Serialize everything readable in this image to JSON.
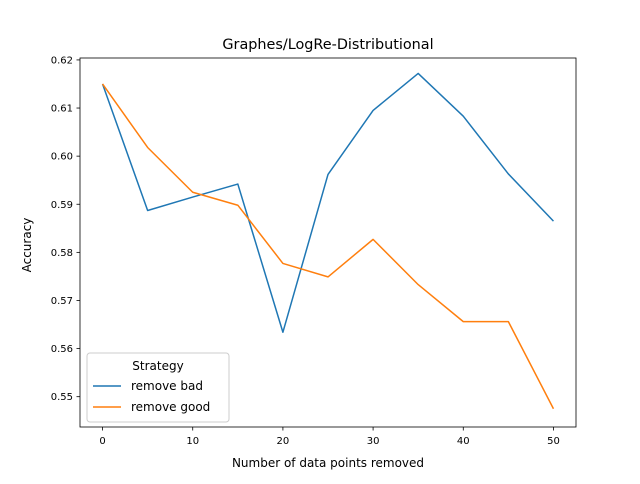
{
  "chart_data": {
    "type": "line",
    "title": "Graphes/LogRe-Distributional",
    "xlabel": "Number of data points removed",
    "ylabel": "Accuracy",
    "x": [
      0,
      5,
      10,
      15,
      20,
      25,
      30,
      35,
      40,
      45,
      50
    ],
    "xlim": [
      -2.5,
      52.5
    ],
    "ylim": [
      0.5437,
      0.6204
    ],
    "xticks": [
      "0",
      "10",
      "20",
      "30",
      "40",
      "50"
    ],
    "yticks": [
      "0.55",
      "0.56",
      "0.57",
      "0.58",
      "0.59",
      "0.60",
      "0.61",
      "0.62"
    ],
    "grid": false,
    "legend": {
      "title": "Strategy",
      "placement": "lower left"
    },
    "series": [
      {
        "name": "remove bad",
        "color": "#1f77b4",
        "values": [
          0.615,
          0.5887,
          0.5915,
          0.5942,
          0.5634,
          0.5962,
          0.6095,
          0.6172,
          0.6083,
          0.5963,
          0.5865
        ]
      },
      {
        "name": "remove good",
        "color": "#ff7f0e",
        "values": [
          0.615,
          0.6018,
          0.5925,
          0.5898,
          0.5777,
          0.5749,
          0.5827,
          0.5733,
          0.5656,
          0.5656,
          0.5475
        ]
      }
    ]
  }
}
